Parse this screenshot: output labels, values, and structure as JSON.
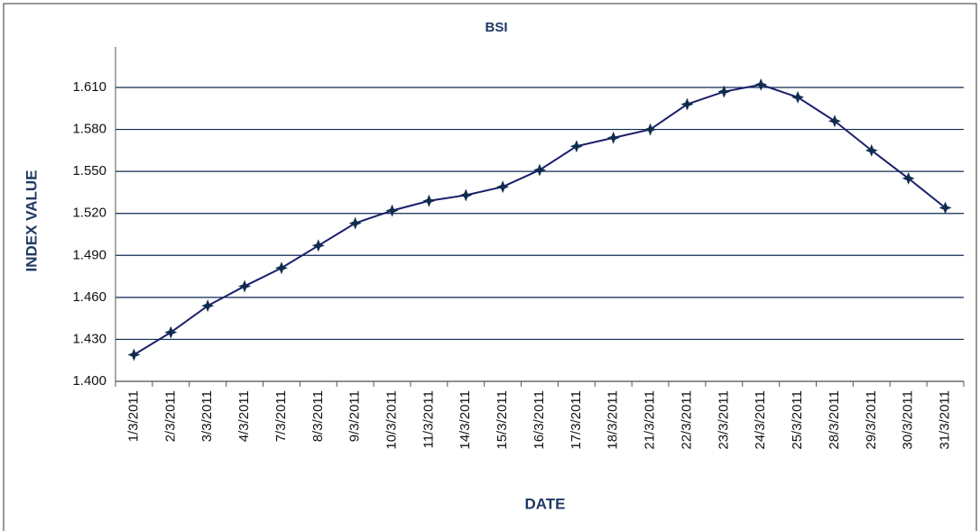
{
  "chart_data": {
    "type": "line",
    "title": "BSI",
    "xlabel": "DATE",
    "ylabel": "INDEX VALUE",
    "categories": [
      "1/3/2011",
      "2/3/2011",
      "3/3/2011",
      "4/3/2011",
      "7/3/2011",
      "8/3/2011",
      "9/3/2011",
      "10/3/2011",
      "11/3/2011",
      "14/3/2011",
      "15/3/2011",
      "16/3/2011",
      "17/3/2011",
      "18/3/2011",
      "21/3/2011",
      "22/3/2011",
      "23/3/2011",
      "24/3/2011",
      "25/3/2011",
      "28/3/2011",
      "29/3/2011",
      "30/3/2011",
      "31/3/2011"
    ],
    "series": [
      {
        "name": "BSI",
        "color": "#1b1f6b",
        "values": [
          1419,
          1435,
          1454,
          1468,
          1481,
          1497,
          1513,
          1522,
          1529,
          1533,
          1539,
          1551,
          1568,
          1574,
          1580,
          1598,
          1607,
          1612,
          1603,
          1586,
          1565,
          1545,
          1524
        ]
      }
    ],
    "ylim": [
      1400,
      1610
    ],
    "yticks": [
      {
        "value": 1400,
        "label": "1.400"
      },
      {
        "value": 1430,
        "label": "1.430"
      },
      {
        "value": 1460,
        "label": "1.460"
      },
      {
        "value": 1490,
        "label": "1.490"
      },
      {
        "value": 1520,
        "label": "1.520"
      },
      {
        "value": 1550,
        "label": "1.550"
      },
      {
        "value": 1580,
        "label": "1.580"
      },
      {
        "value": 1610,
        "label": "1.610"
      }
    ],
    "grid": true,
    "grid_color": "#0d2a52",
    "marker_color": "#0e2d4e"
  }
}
